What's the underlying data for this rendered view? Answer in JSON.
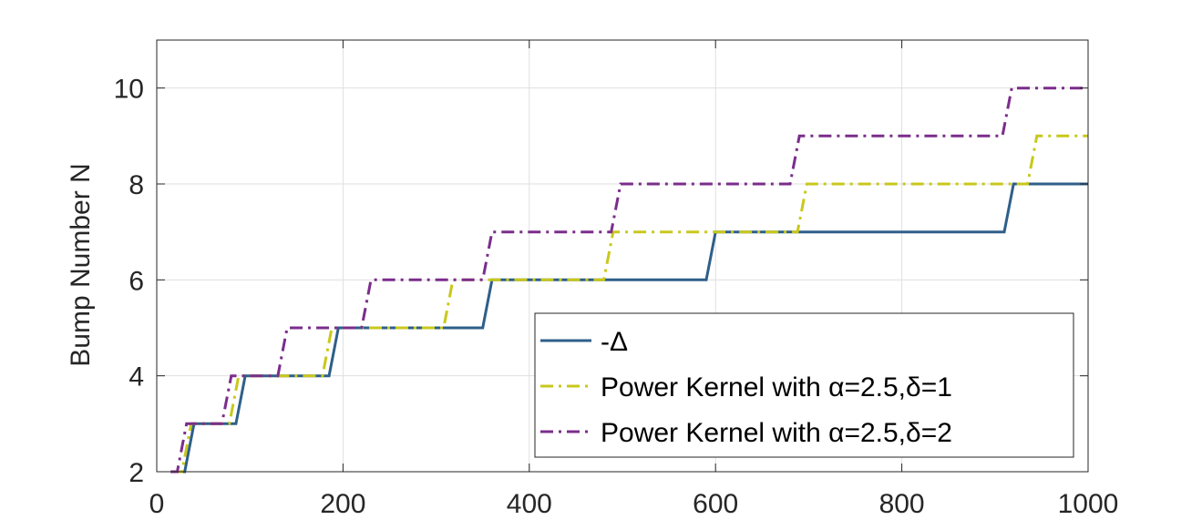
{
  "chart_data": {
    "type": "line",
    "title": "",
    "xlabel": "",
    "ylabel": "Bump Number N",
    "xlim": [
      0,
      1000
    ],
    "ylim": [
      2,
      11
    ],
    "xticks": [
      0,
      200,
      400,
      600,
      800,
      1000
    ],
    "yticks": [
      2,
      4,
      6,
      8,
      10
    ],
    "grid": true,
    "legend_position": "bottom-right",
    "series": [
      {
        "name": "-Δ",
        "color": "#2e5f8a",
        "style": "solid",
        "points": [
          [
            15,
            2
          ],
          [
            30,
            2
          ],
          [
            40,
            3
          ],
          [
            85,
            3
          ],
          [
            95,
            4
          ],
          [
            185,
            4
          ],
          [
            195,
            5
          ],
          [
            350,
            5
          ],
          [
            360,
            6
          ],
          [
            590,
            6
          ],
          [
            600,
            7
          ],
          [
            910,
            7
          ],
          [
            920,
            8
          ],
          [
            1000,
            8
          ]
        ]
      },
      {
        "name": "Power Kernel with α=2.5,δ=1",
        "color": "#c8c81c",
        "style": "dashdot",
        "points": [
          [
            15,
            2
          ],
          [
            27,
            2
          ],
          [
            37,
            3
          ],
          [
            78,
            3
          ],
          [
            88,
            4
          ],
          [
            178,
            4
          ],
          [
            188,
            5
          ],
          [
            308,
            5
          ],
          [
            318,
            6
          ],
          [
            480,
            6
          ],
          [
            490,
            7
          ],
          [
            688,
            7
          ],
          [
            698,
            8
          ],
          [
            935,
            8
          ],
          [
            945,
            9
          ],
          [
            1000,
            9
          ]
        ]
      },
      {
        "name": "Power Kernel with α=2.5,δ=2",
        "color": "#7b2d8b",
        "style": "dashdot",
        "points": [
          [
            15,
            2
          ],
          [
            22,
            2
          ],
          [
            32,
            3
          ],
          [
            70,
            3
          ],
          [
            80,
            4
          ],
          [
            130,
            4
          ],
          [
            140,
            5
          ],
          [
            220,
            5
          ],
          [
            230,
            6
          ],
          [
            350,
            6
          ],
          [
            360,
            7
          ],
          [
            488,
            7
          ],
          [
            498,
            8
          ],
          [
            680,
            8
          ],
          [
            690,
            9
          ],
          [
            908,
            9
          ],
          [
            918,
            10
          ],
          [
            1000,
            10
          ]
        ]
      }
    ]
  }
}
